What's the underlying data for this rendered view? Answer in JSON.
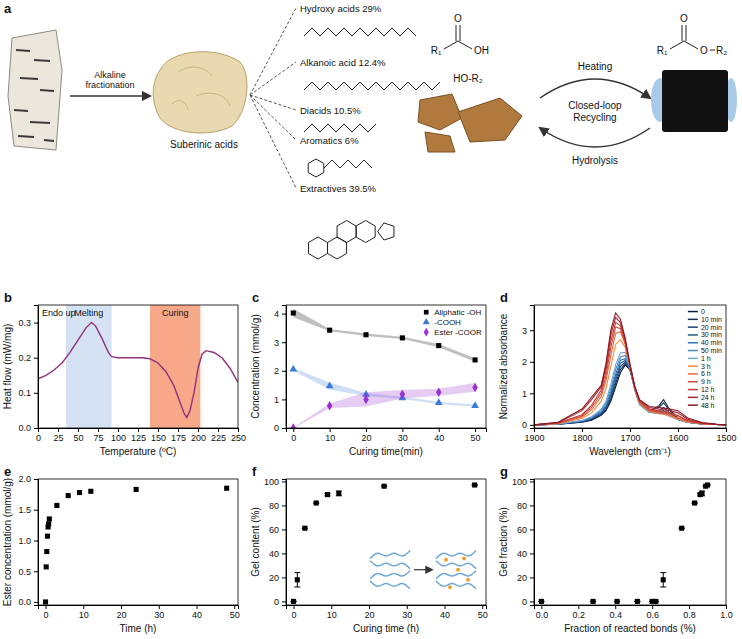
{
  "schematic": {
    "panel": "a",
    "step": "Alkaline fractionation",
    "product": "Suberinic acids",
    "components": [
      "Hydroxy acids 29%",
      "Alkanoic acid 12.4%",
      "Diacids 10.5%",
      "Aromatics 6%",
      "Extractives 39.5%"
    ],
    "acid": [
      "R₁",
      "O",
      "OH"
    ],
    "alcohol": "HO-R₂",
    "ester": [
      "R₁",
      "O",
      "O",
      "R₂"
    ],
    "cycle": {
      "forward": "Heating",
      "center": "Closed-loop Recycling",
      "backward": "Hydrolysis"
    }
  },
  "chart_data": [
    {
      "panel": "b",
      "type": "line",
      "x_label": "Temperature (ºC)",
      "y_label": "Heat flow (mW/mg)",
      "x": [
        0,
        10,
        20,
        30,
        40,
        50,
        60,
        67,
        72,
        80,
        88,
        92,
        100,
        110,
        120,
        130,
        140,
        150,
        160,
        170,
        178,
        183,
        186,
        190,
        195,
        200,
        205,
        210,
        220,
        230,
        240,
        250
      ],
      "values": [
        0.14,
        0.15,
        0.165,
        0.185,
        0.215,
        0.25,
        0.285,
        0.3,
        0.29,
        0.255,
        0.215,
        0.203,
        0.2,
        0.2,
        0.2,
        0.2,
        0.197,
        0.185,
        0.16,
        0.12,
        0.07,
        0.04,
        0.03,
        0.05,
        0.1,
        0.17,
        0.21,
        0.22,
        0.215,
        0.2,
        0.17,
        0.13
      ],
      "color": "#93307a",
      "xlim": [
        0,
        250
      ],
      "ylim": [
        0,
        0.35
      ],
      "xticks": [
        0,
        25,
        50,
        75,
        100,
        125,
        150,
        175,
        200,
        225,
        250
      ],
      "yticks": [
        {
          "value": 0,
          "label": "0.0"
        },
        0.1,
        0.2,
        0.3
      ],
      "regions": [
        {
          "label": "Melting",
          "range": [
            35,
            92
          ],
          "color": "#d5e2f3"
        },
        {
          "label": "Curing",
          "range": [
            140,
            203
          ],
          "color": "#f6a889"
        }
      ],
      "annotations": [
        "Endo up"
      ]
    },
    {
      "panel": "c",
      "type": "scatter",
      "x_label": "Curing time(min)",
      "y_label": "Concentration (mmol/g)",
      "x": [
        0,
        10,
        20,
        30,
        40,
        50
      ],
      "xlim": [
        -2,
        53
      ],
      "ylim": [
        0,
        4.3
      ],
      "xticks": [
        0,
        10,
        20,
        30,
        40,
        50
      ],
      "yticks": [
        0,
        1,
        2,
        3,
        4
      ],
      "legend": "top-right",
      "series": [
        {
          "name": "Aliphatic -OH",
          "color": "#000000",
          "marker": "square",
          "values": [
            4.02,
            3.42,
            3.26,
            3.15,
            2.88,
            2.38
          ],
          "error": [
            0.15,
            0.04,
            0.04,
            0.04,
            0.06,
            0.06
          ]
        },
        {
          "name": "-COOH",
          "color": "#3a7bd5",
          "marker": "triangle",
          "values": [
            2.05,
            1.47,
            1.17,
            1.05,
            0.88,
            0.78
          ],
          "error": [
            0.05,
            0.12,
            0.05,
            0.04,
            0.04,
            0.04
          ]
        },
        {
          "name": "Ester -COOR",
          "color": "#9b30d0",
          "marker": "diamond",
          "values": [
            0,
            0.78,
            1.0,
            1.18,
            1.25,
            1.42
          ],
          "error": [
            0.02,
            0.08,
            0.25,
            0.15,
            0.12,
            0.15
          ]
        }
      ]
    },
    {
      "panel": "d",
      "type": "line",
      "x_label": "Wavelength (cm⁻¹)",
      "y_label": "Normalized absorbance",
      "x": [
        1900,
        1850,
        1800,
        1780,
        1760,
        1750,
        1740,
        1730,
        1720,
        1710,
        1700,
        1690,
        1680,
        1660,
        1640,
        1630,
        1620,
        1600,
        1580,
        1550,
        1520,
        1500
      ],
      "xlim": [
        1900,
        1500
      ],
      "ylim": [
        -0.1,
        3.8
      ],
      "xticks": [
        1900,
        1800,
        1700,
        1600,
        1500
      ],
      "yticks": [
        0,
        1,
        2,
        3
      ],
      "legend": "top-right",
      "series": [
        {
          "name": "0",
          "color": "#0d1b3e",
          "values": [
            0,
            0.02,
            0.08,
            0.15,
            0.3,
            0.45,
            0.75,
            1.2,
            1.65,
            1.9,
            1.75,
            1.2,
            0.7,
            0.45,
            0.6,
            0.8,
            0.55,
            0.2,
            0.08,
            0.03,
            0.01,
            0
          ]
        },
        {
          "name": "10 min",
          "color": "#14305a",
          "values": [
            0,
            0.02,
            0.09,
            0.16,
            0.32,
            0.48,
            0.8,
            1.3,
            1.75,
            1.95,
            1.75,
            1.2,
            0.7,
            0.45,
            0.55,
            0.7,
            0.5,
            0.2,
            0.08,
            0.03,
            0.01,
            0
          ]
        },
        {
          "name": "20 min",
          "color": "#1c4277",
          "values": [
            0,
            0.02,
            0.1,
            0.18,
            0.35,
            0.52,
            0.88,
            1.4,
            1.85,
            2.0,
            1.75,
            1.15,
            0.68,
            0.42,
            0.45,
            0.55,
            0.42,
            0.18,
            0.08,
            0.03,
            0.01,
            0
          ]
        },
        {
          "name": "30 min",
          "color": "#235a94",
          "values": [
            0,
            0.03,
            0.11,
            0.2,
            0.38,
            0.56,
            0.95,
            1.5,
            1.95,
            2.05,
            1.75,
            1.15,
            0.66,
            0.4,
            0.4,
            0.45,
            0.36,
            0.17,
            0.08,
            0.03,
            0.01,
            0
          ]
        },
        {
          "name": "40 min",
          "color": "#2e72b0",
          "values": [
            0,
            0.03,
            0.12,
            0.22,
            0.42,
            0.62,
            1.05,
            1.6,
            2.05,
            2.1,
            1.75,
            1.12,
            0.65,
            0.4,
            0.38,
            0.4,
            0.33,
            0.17,
            0.08,
            0.03,
            0.01,
            0
          ]
        },
        {
          "name": "50 min",
          "color": "#4a8ac4",
          "values": [
            0,
            0.03,
            0.13,
            0.24,
            0.45,
            0.68,
            1.15,
            1.75,
            2.15,
            2.2,
            1.8,
            1.12,
            0.64,
            0.4,
            0.36,
            0.36,
            0.3,
            0.16,
            0.08,
            0.03,
            0.01,
            0
          ]
        },
        {
          "name": "1 h",
          "color": "#6fa6d6",
          "values": [
            0,
            0.03,
            0.14,
            0.26,
            0.5,
            0.75,
            1.28,
            1.9,
            2.28,
            2.3,
            1.85,
            1.12,
            0.64,
            0.4,
            0.35,
            0.34,
            0.29,
            0.16,
            0.08,
            0.03,
            0.01,
            0
          ]
        },
        {
          "name": "3 h",
          "color": "#f08a3c",
          "values": [
            0,
            0.04,
            0.2,
            0.38,
            0.75,
            1.15,
            1.85,
            2.55,
            2.7,
            2.45,
            1.85,
            1.15,
            0.68,
            0.42,
            0.36,
            0.34,
            0.3,
            0.18,
            0.09,
            0.03,
            0.01,
            0
          ]
        },
        {
          "name": "6 h",
          "color": "#e8663a",
          "values": [
            0,
            0.05,
            0.25,
            0.48,
            0.9,
            1.4,
            2.2,
            2.9,
            2.95,
            2.55,
            1.85,
            1.15,
            0.7,
            0.45,
            0.38,
            0.36,
            0.33,
            0.22,
            0.1,
            0.04,
            0.01,
            0
          ]
        },
        {
          "name": "9 h",
          "color": "#d94a3a",
          "values": [
            0,
            0.05,
            0.28,
            0.55,
            1.0,
            1.55,
            2.45,
            3.1,
            3.05,
            2.6,
            1.85,
            1.15,
            0.72,
            0.48,
            0.42,
            0.4,
            0.37,
            0.27,
            0.12,
            0.04,
            0.01,
            0
          ]
        },
        {
          "name": "12 h",
          "color": "#c23b35",
          "values": [
            0,
            0.06,
            0.32,
            0.62,
            1.1,
            1.7,
            2.65,
            3.25,
            3.15,
            2.65,
            1.88,
            1.18,
            0.75,
            0.5,
            0.45,
            0.43,
            0.4,
            0.3,
            0.14,
            0.05,
            0.01,
            0
          ]
        },
        {
          "name": "24 h",
          "color": "#a5292e",
          "values": [
            0,
            0.07,
            0.45,
            0.8,
            1.2,
            1.85,
            2.85,
            3.4,
            3.25,
            2.7,
            1.9,
            1.2,
            0.78,
            0.55,
            0.5,
            0.48,
            0.46,
            0.38,
            0.18,
            0.06,
            0.02,
            0
          ]
        },
        {
          "name": "48 h",
          "color": "#8b1a25",
          "values": [
            0,
            0.08,
            0.5,
            0.88,
            1.25,
            1.95,
            3.0,
            3.55,
            3.35,
            2.75,
            1.92,
            1.22,
            0.8,
            0.58,
            0.55,
            0.53,
            0.51,
            0.45,
            0.22,
            0.07,
            0.02,
            0
          ]
        }
      ]
    },
    {
      "panel": "e",
      "type": "scatter",
      "x_label": "Time (h)",
      "y_label": "Ester concentration (mmol/g)",
      "x": [
        0,
        0.17,
        0.33,
        0.5,
        0.67,
        0.83,
        1,
        3,
        6,
        9,
        12,
        24,
        48
      ],
      "values": [
        0,
        0.57,
        0.82,
        1.07,
        1.22,
        1.27,
        1.35,
        1.57,
        1.73,
        1.78,
        1.8,
        1.83,
        1.85
      ],
      "color": "#000000",
      "marker": "square",
      "xlim": [
        -2,
        51
      ],
      "ylim": [
        -0.05,
        2.0
      ],
      "xticks": [
        0,
        10,
        20,
        30,
        40,
        50
      ],
      "yticks": [
        {
          "value": 0,
          "label": "0.0"
        },
        0.5,
        {
          "value": 1,
          "label": "1.0"
        },
        1.5,
        {
          "value": 2,
          "label": "2.0"
        }
      ]
    },
    {
      "panel": "f",
      "type": "scatter",
      "x_label": "Curing time (h)",
      "y_label": "Gel content (%)",
      "x": [
        0,
        1,
        3,
        6,
        9,
        12,
        24,
        48
      ],
      "values": [
        0,
        18,
        61,
        82,
        89,
        90,
        96,
        97
      ],
      "error": [
        0,
        6,
        0,
        0,
        1,
        2,
        0,
        0
      ],
      "color": "#000000",
      "marker": "square",
      "xlim": [
        -2,
        51
      ],
      "ylim": [
        -3,
        102
      ],
      "xticks": [
        0,
        10,
        20,
        30,
        40,
        50
      ],
      "yticks": [
        0,
        20,
        40,
        60,
        80,
        100
      ]
    },
    {
      "panel": "g",
      "type": "scatter",
      "x_label": "Fraction of reacted bonds (%)",
      "y_label": "Gel fraction (%)",
      "x": [
        0,
        0.28,
        0.41,
        0.52,
        0.6,
        0.62,
        0.66,
        0.76,
        0.83,
        0.86,
        0.87,
        0.89,
        0.9
      ],
      "values": [
        0,
        0,
        0,
        0,
        0,
        0,
        18,
        61,
        82,
        89,
        90,
        96,
        97
      ],
      "error": [
        0,
        0,
        0,
        0,
        0,
        0,
        6,
        0,
        0,
        1,
        2,
        0,
        0
      ],
      "color": "#000000",
      "marker": "square",
      "xlim": [
        -0.04,
        1.0
      ],
      "ylim": [
        -3,
        102
      ],
      "xticks": [
        {
          "value": 0,
          "label": "0.0"
        },
        0.2,
        0.4,
        0.6,
        0.8,
        {
          "value": 1,
          "label": "1.0"
        }
      ],
      "yticks": [
        0,
        20,
        40,
        60,
        80,
        100
      ]
    }
  ]
}
